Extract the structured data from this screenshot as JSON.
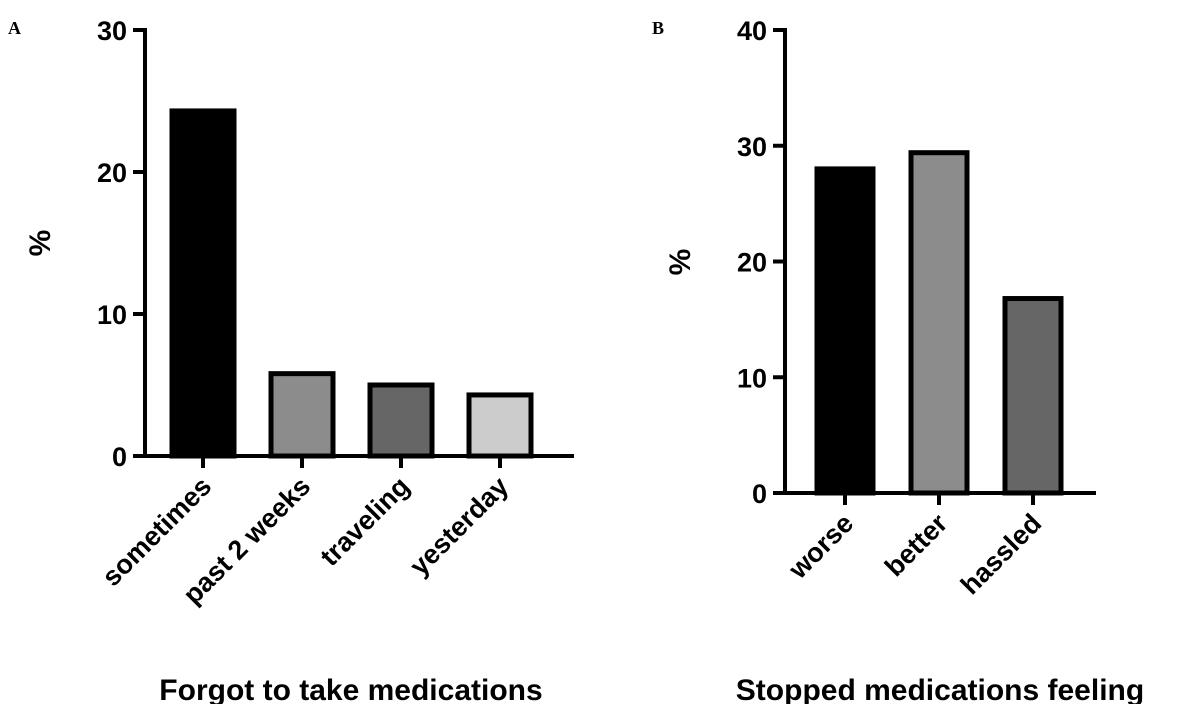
{
  "chart_data": [
    {
      "panel": "A",
      "type": "bar",
      "title": "",
      "xlabel": "Forgot to take medications",
      "ylabel": "%",
      "ylim": [
        0,
        30
      ],
      "yticks": [
        "0",
        "10",
        "20",
        "30"
      ],
      "categories": [
        "sometimes",
        "past 2 weeks",
        "traveling",
        "yesterday"
      ],
      "values": [
        24.3,
        5.8,
        5.0,
        4.3
      ],
      "colors": [
        "#000000",
        "#8c8c8c",
        "#666666",
        "#cccccc"
      ],
      "grid": false
    },
    {
      "panel": "B",
      "type": "bar",
      "title": "",
      "xlabel": "Stopped medications feeling",
      "ylabel": "%",
      "ylim": [
        0,
        40
      ],
      "yticks": [
        "0",
        "10",
        "20",
        "30",
        "40"
      ],
      "categories": [
        "worse",
        "better",
        "hassled"
      ],
      "values": [
        28.0,
        29.4,
        16.8
      ],
      "colors": [
        "#000000",
        "#8c8c8c",
        "#666666"
      ],
      "grid": false
    }
  ]
}
